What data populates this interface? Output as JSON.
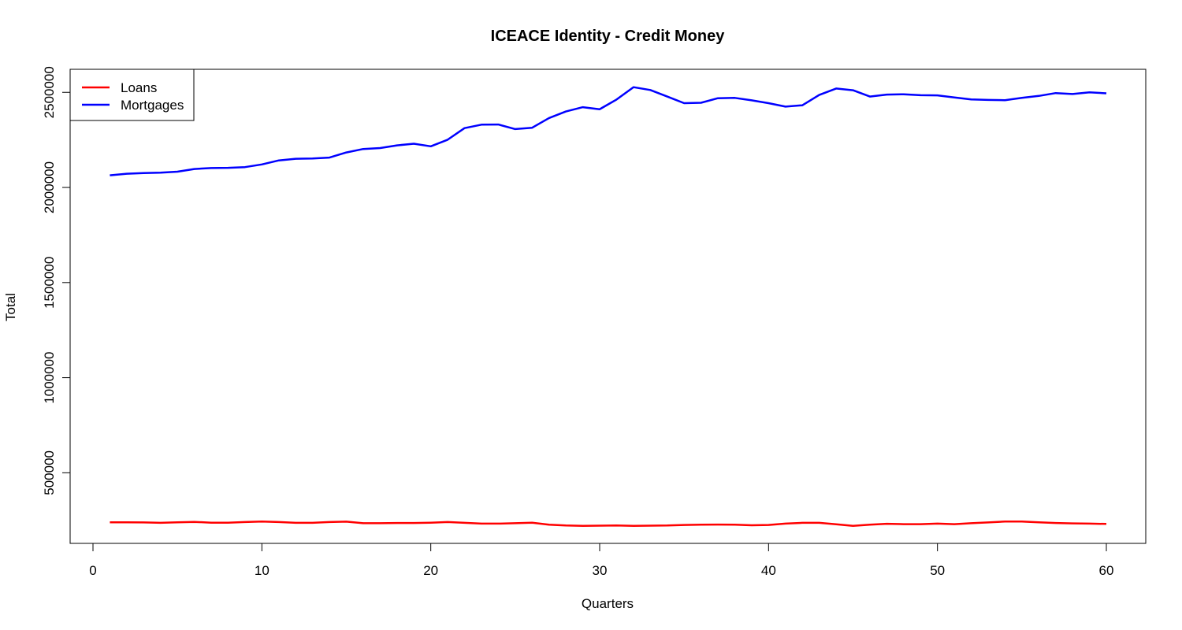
{
  "chart_data": {
    "type": "line",
    "title": "ICEACE Identity - Credit Money",
    "xlabel": "Quarters",
    "ylabel": "Total",
    "xlim": [
      1,
      60
    ],
    "ylim": [
      220000,
      2530000
    ],
    "x_ticks": [
      0,
      10,
      20,
      30,
      40,
      50,
      60
    ],
    "y_ticks": [
      500000,
      1000000,
      1500000,
      2000000,
      2500000
    ],
    "grid": false,
    "legend_position": "top-left",
    "x": [
      1,
      2,
      3,
      4,
      5,
      6,
      7,
      8,
      9,
      10,
      11,
      12,
      13,
      14,
      15,
      16,
      17,
      18,
      19,
      20,
      21,
      22,
      23,
      24,
      25,
      26,
      27,
      28,
      29,
      30,
      31,
      32,
      33,
      34,
      35,
      36,
      37,
      38,
      39,
      40,
      41,
      42,
      43,
      44,
      45,
      46,
      47,
      48,
      49,
      50,
      51,
      52,
      53,
      54,
      55,
      56,
      57,
      58,
      59,
      60
    ],
    "series": [
      {
        "name": "Loans",
        "color": "#ff0000",
        "values": [
          240000,
          240000,
          239000,
          237000,
          240000,
          242000,
          238000,
          238000,
          241000,
          244000,
          241000,
          237000,
          237000,
          241000,
          243000,
          235000,
          235000,
          236000,
          236000,
          238000,
          241000,
          237000,
          233000,
          233000,
          235000,
          238000,
          227000,
          223000,
          221000,
          222000,
          223000,
          221000,
          222000,
          223000,
          226000,
          227000,
          228000,
          227000,
          224000,
          226000,
          233000,
          237000,
          237000,
          229000,
          221000,
          227000,
          232000,
          230000,
          230000,
          233000,
          230000,
          235000,
          239000,
          244000,
          244000,
          240000,
          236000,
          234000,
          233000,
          231000
        ]
      },
      {
        "name": "Mortgages",
        "color": "#0000ff",
        "values": [
          2064000,
          2072000,
          2076000,
          2078000,
          2083000,
          2097000,
          2102000,
          2103000,
          2107000,
          2121000,
          2142000,
          2151000,
          2152000,
          2157000,
          2184000,
          2202000,
          2207000,
          2221000,
          2230000,
          2216000,
          2251000,
          2312000,
          2330000,
          2331000,
          2307000,
          2314000,
          2365000,
          2399000,
          2422000,
          2411000,
          2462000,
          2527000,
          2512000,
          2478000,
          2443000,
          2445000,
          2469000,
          2471000,
          2458000,
          2443000,
          2425000,
          2432000,
          2486000,
          2520000,
          2511000,
          2478000,
          2488000,
          2490000,
          2485000,
          2484000,
          2473000,
          2463000,
          2460000,
          2459000,
          2471000,
          2481000,
          2496000,
          2491000,
          2500000,
          2495000
        ]
      }
    ]
  }
}
